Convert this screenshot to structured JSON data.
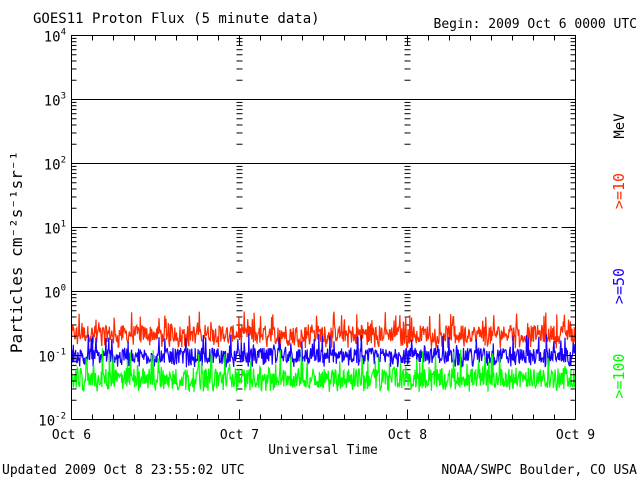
{
  "header": {
    "title": "GOES11 Proton Flux (5 minute data)",
    "begin": "Begin: 2009 Oct 6 0000 UTC"
  },
  "footer": {
    "updated": "Updated 2009 Oct  8 23:55:02 UTC",
    "source": "NOAA/SWPC Boulder, CO USA"
  },
  "chart_data": {
    "type": "line",
    "title": "GOES11 Proton Flux (5 minute data)",
    "xlabel": "Universal Time",
    "ylabel": "Particles cm⁻²s⁻¹sr⁻¹",
    "y_scale": "log",
    "ylim": [
      0.01,
      10000
    ],
    "y_ticks": [
      {
        "value": 0.01,
        "base": "10",
        "exp": "-2"
      },
      {
        "value": 0.1,
        "base": "10",
        "exp": "-1"
      },
      {
        "value": 1,
        "base": "10",
        "exp": "0"
      },
      {
        "value": 10,
        "base": "10",
        "exp": "1"
      },
      {
        "value": 100,
        "base": "10",
        "exp": "2"
      },
      {
        "value": 1000,
        "base": "10",
        "exp": "3"
      },
      {
        "value": 10000,
        "base": "10",
        "exp": "4"
      }
    ],
    "x_range": [
      "2009-10-06 00:00",
      "2009-10-09 00:00"
    ],
    "x_ticks": [
      "Oct 6",
      "Oct 7",
      "Oct 8",
      "Oct 9"
    ],
    "reference_lines": [
      {
        "value": 1,
        "style": "solid"
      },
      {
        "value": 10,
        "style": "dashed"
      },
      {
        "value": 100,
        "style": "solid"
      },
      {
        "value": 1000,
        "style": "solid"
      }
    ],
    "legend_unit": "MeV",
    "series": [
      {
        "name": ">=10",
        "color": "#ff2a00",
        "typical_flux": 0.22,
        "range": [
          0.13,
          0.5
        ]
      },
      {
        "name": ">=50",
        "color": "#1a00ff",
        "typical_flux": 0.1,
        "range": [
          0.065,
          0.22
        ]
      },
      {
        "name": ">=100",
        "color": "#00ff00",
        "typical_flux": 0.045,
        "range": [
          0.027,
          0.13
        ]
      }
    ]
  }
}
